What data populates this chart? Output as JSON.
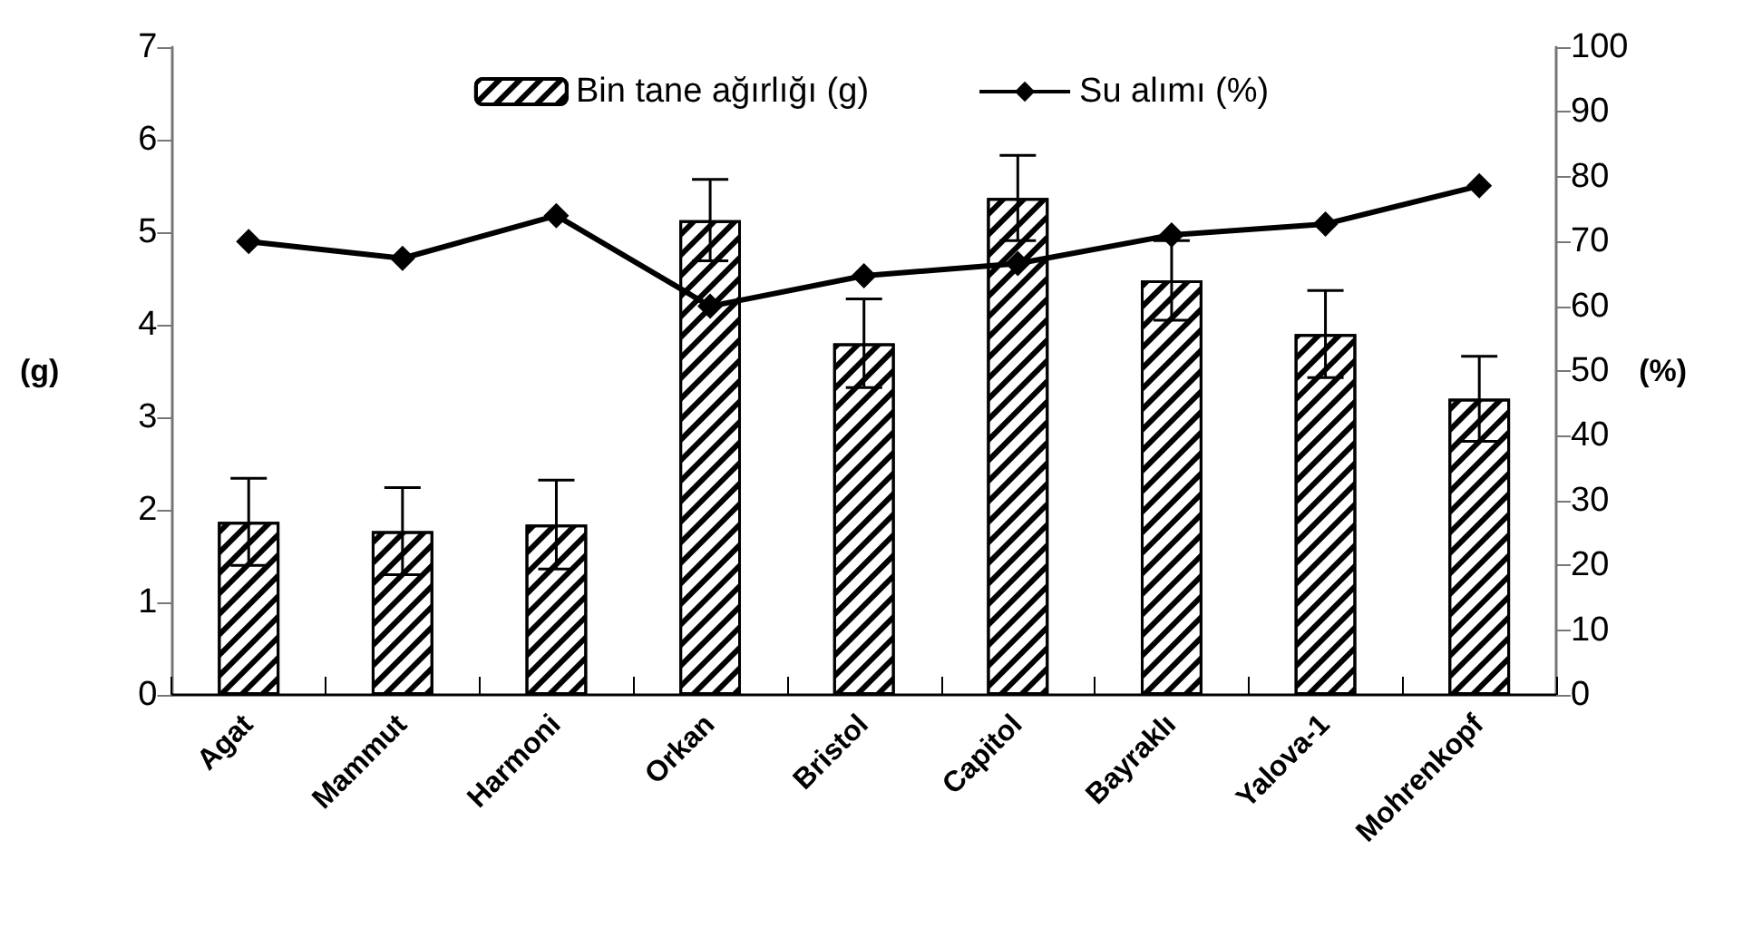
{
  "chart_data": {
    "type": "bar",
    "ylabel": "(g)",
    "y2label": "(%)",
    "categories": [
      "Agat",
      "Mammut",
      "Harmoni",
      "Orkan",
      "Bristol",
      "Capitol",
      "Bayraklı",
      "Yalova-1",
      "Mohrenkopf"
    ],
    "series": [
      {
        "name": "Bin tane ağırlığı (g)",
        "color": "#000000",
        "values": [
          1.87,
          1.77,
          1.84,
          5.13,
          3.8,
          5.37,
          4.48,
          3.9,
          3.2
        ],
        "errors": [
          0.47,
          0.47,
          0.48,
          0.44,
          0.48,
          0.46,
          0.43,
          0.47,
          0.46
        ]
      },
      {
        "name": "Su alımı (%)",
        "type": "line",
        "axis": "y2",
        "color": "#000000",
        "marker": "diamond",
        "values": [
          70,
          67.4,
          74,
          60,
          64.7,
          66.6,
          71,
          72.7,
          78.6
        ]
      }
    ],
    "ylim": [
      0,
      7
    ],
    "yticks": [
      0,
      1,
      2,
      3,
      4,
      5,
      6,
      7
    ],
    "y2lim": [
      0,
      100
    ],
    "y2ticks": [
      0,
      10,
      20,
      30,
      40,
      50,
      60,
      70,
      80,
      90,
      100
    ],
    "grid": false,
    "legend": "top"
  }
}
